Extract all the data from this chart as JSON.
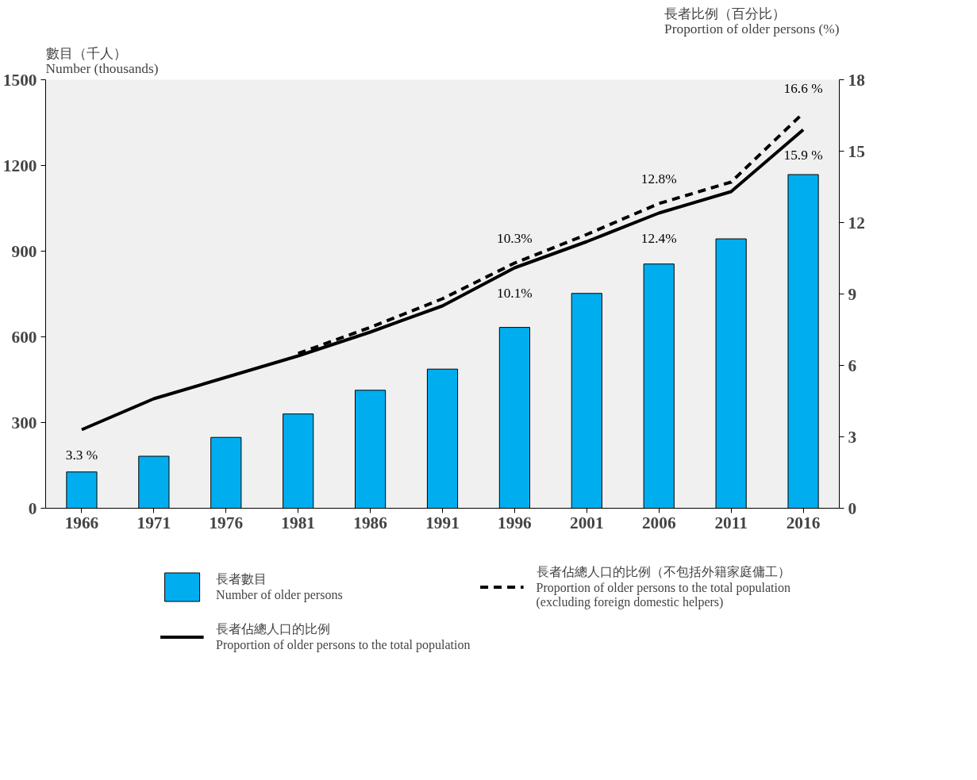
{
  "chart_data": {
    "type": "bar",
    "ylabel": "數目（千人）\nNumber (thousands)",
    "y2label": "長者比例（百分比）\nProportion of older persons (%)",
    "categories": [
      "1966",
      "1971",
      "1976",
      "1981",
      "1986",
      "1991",
      "1996",
      "2001",
      "2006",
      "2011",
      "2016"
    ],
    "series": [
      {
        "name": "長者數目\nNumber of older persons",
        "color": "#00aeef",
        "values": [
          127,
          182,
          248,
          330,
          413,
          487,
          633,
          752,
          855,
          943,
          1168
        ]
      },
      {
        "name": "長者佔總人口的比例\nProportion of older persons to the total population",
        "type": "line",
        "axis": "y2",
        "color": "#000000",
        "line_style": "solid",
        "values": [
          3.3,
          4.6,
          5.5,
          6.4,
          7.4,
          8.5,
          10.1,
          11.2,
          12.4,
          13.3,
          15.9
        ],
        "value_labels": [
          "3.3 %",
          null,
          null,
          null,
          null,
          null,
          "10.1%",
          null,
          "12.4%",
          null,
          "15.9 %"
        ]
      },
      {
        "name": "長者佔總人口的比例（不包括外籍家庭傭工）\nProportion of older persons to the total population\n(excluding foreign domestic helpers)",
        "type": "line",
        "axis": "y2",
        "color": "#000000",
        "line_style": "dashed",
        "values": [
          null,
          null,
          null,
          6.5,
          7.6,
          8.8,
          10.3,
          11.5,
          12.8,
          13.7,
          16.6
        ],
        "value_labels": [
          null,
          null,
          null,
          null,
          null,
          null,
          "10.3%",
          null,
          "12.8%",
          null,
          "16.6 %"
        ]
      }
    ],
    "ylim": [
      0,
      1500
    ],
    "yticks": [
      0,
      300,
      600,
      900,
      1200,
      1500
    ],
    "y2lim": [
      0,
      18
    ],
    "y2ticks": [
      0,
      3,
      6,
      9,
      12,
      15,
      18
    ],
    "legend": "bottom",
    "grid": false
  }
}
